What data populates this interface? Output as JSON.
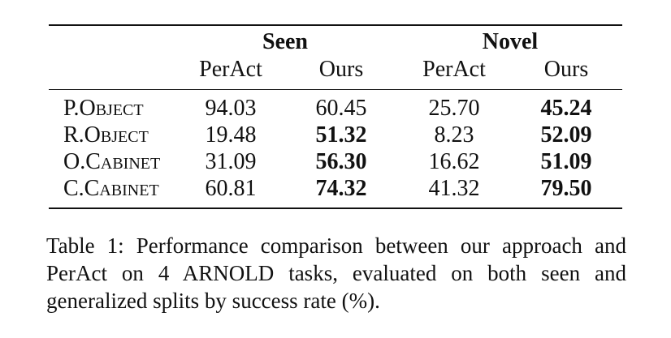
{
  "table": {
    "groups": [
      "Seen",
      "Novel"
    ],
    "subheaders": [
      "PerAct",
      "Ours",
      "PerAct",
      "Ours"
    ],
    "rows": [
      {
        "label": "P.Object",
        "values": [
          "94.03",
          "60.45",
          "25.70",
          "45.24"
        ],
        "bold": [
          false,
          false,
          false,
          true
        ]
      },
      {
        "label": "R.Object",
        "values": [
          "19.48",
          "51.32",
          "8.23",
          "52.09"
        ],
        "bold": [
          false,
          true,
          false,
          true
        ]
      },
      {
        "label": "O.Cabinet",
        "values": [
          "31.09",
          "56.30",
          "16.62",
          "51.09"
        ],
        "bold": [
          false,
          true,
          false,
          true
        ]
      },
      {
        "label": "C.Cabinet",
        "values": [
          "60.81",
          "74.32",
          "41.32",
          "79.50"
        ],
        "bold": [
          false,
          true,
          false,
          true
        ]
      }
    ]
  },
  "caption": "Table 1: Performance comparison between our approach and PerAct on 4 ARNOLD tasks, evaluated on both seen and generalized splits by success rate (%)."
}
